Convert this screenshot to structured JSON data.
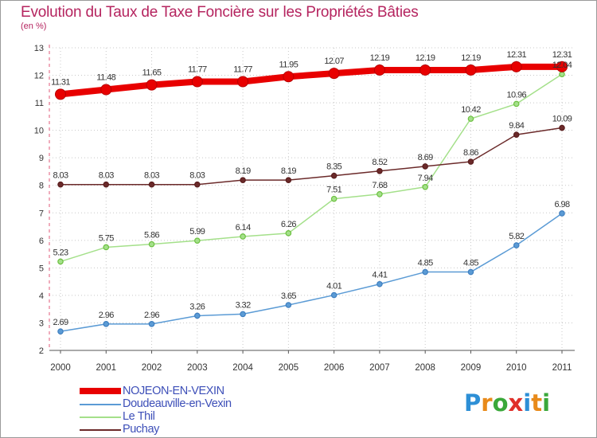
{
  "title": "Evolution du Taux de Taxe Foncière sur les Propriétés Bâties",
  "unit_label": "(en %)",
  "logo": {
    "chars": [
      "P",
      "r",
      "o",
      "x",
      "i",
      "t",
      "i"
    ],
    "colors": [
      "#2d8fd6",
      "#e88a1a",
      "#3aa83a",
      "#e0302a",
      "#2d8fd6",
      "#e88a1a",
      "#3aa83a"
    ]
  },
  "chart_data": {
    "type": "line",
    "title": "Evolution du Taux de Taxe Foncière sur les Propriétés Bâties",
    "ylabel": "(en %)",
    "xlabel": "",
    "x": [
      "2000",
      "2001",
      "2002",
      "2003",
      "2004",
      "2005",
      "2006",
      "2007",
      "2008",
      "2009",
      "2010",
      "2011"
    ],
    "ylim": [
      2,
      13
    ],
    "yticks": [
      "2",
      "3",
      "4",
      "5",
      "6",
      "7",
      "8",
      "9",
      "10",
      "11",
      "12",
      "13"
    ],
    "legend_position": "bottom-left",
    "series": [
      {
        "name": "NOJEON-EN-VEXIN",
        "color": "#e80000",
        "emphasis": true,
        "values": [
          11.31,
          11.48,
          11.65,
          11.77,
          11.77,
          11.95,
          12.07,
          12.19,
          12.19,
          12.19,
          12.31,
          12.31
        ],
        "labels": [
          "11.31",
          "11.48",
          "11.65",
          "11.77",
          "11.77",
          "11.95",
          "12.07",
          "12.19",
          "12.19",
          "12.19",
          "12.31",
          "12.31"
        ]
      },
      {
        "name": "Doudeauville-en-Vexin",
        "color": "#5b9bd5",
        "point_color": "#3f7fc0",
        "values": [
          2.69,
          2.96,
          2.96,
          3.26,
          3.32,
          3.65,
          4.01,
          4.41,
          4.85,
          4.85,
          5.82,
          6.98
        ],
        "labels": [
          "2.69",
          "2.96",
          "2.96",
          "3.26",
          "3.32",
          "3.65",
          "4.01",
          "4.41",
          "4.85",
          "4.85",
          "5.82",
          "6.98"
        ]
      },
      {
        "name": "Le Thil",
        "color": "#a4e08a",
        "point_color": "#6cc040",
        "values": [
          5.23,
          5.75,
          5.86,
          5.99,
          6.14,
          6.26,
          7.51,
          7.68,
          7.94,
          10.42,
          10.96,
          12.04
        ],
        "labels": [
          "5.23",
          "5.75",
          "5.86",
          "5.99",
          "6.14",
          "6.26",
          "7.51",
          "7.68",
          "7.94",
          "10.42",
          "10.96",
          "12.04"
        ]
      },
      {
        "name": "Puchay",
        "color": "#6b2a2a",
        "point_color": "#5a1e1e",
        "values": [
          8.03,
          8.03,
          8.03,
          8.03,
          8.19,
          8.19,
          8.35,
          8.52,
          8.69,
          8.86,
          9.84,
          10.09
        ],
        "labels": [
          "8.03",
          "8.03",
          "8.03",
          "8.03",
          "8.19",
          "8.19",
          "8.35",
          "8.52",
          "8.69",
          "8.86",
          "9.84",
          "10.09"
        ]
      }
    ]
  }
}
